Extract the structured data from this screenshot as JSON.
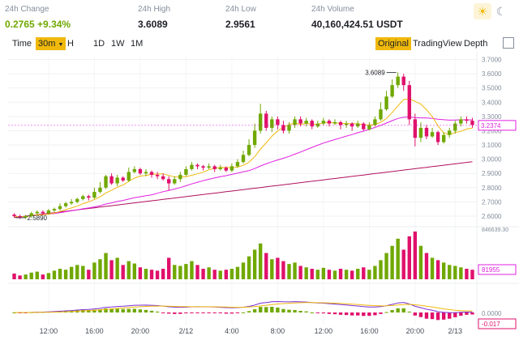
{
  "stats": {
    "change": {
      "label": "24h Change",
      "value": "0.2765",
      "percent": "+9.34%"
    },
    "high": {
      "label": "24h High",
      "value": "3.6089"
    },
    "low": {
      "label": "24h Low",
      "value": "2.9561"
    },
    "volume": {
      "label": "24h Volume",
      "value": "40,160,424.51 USDT"
    }
  },
  "theme": {
    "light_icon": "sun-icon",
    "dark_icon": "moon-icon"
  },
  "toolbar": {
    "time_label": "Time",
    "interval_selected": "30m",
    "intervals": [
      "H",
      "1D",
      "1W",
      "1M"
    ],
    "views": [
      "Original",
      "TradingView",
      "Depth"
    ],
    "active_view": "Original",
    "expand_icon": "expand-icon"
  },
  "colors": {
    "up": "#70a800",
    "down": "#e0106b",
    "ma_short": "#f0b90b",
    "ma_mid": "#e020e0",
    "ma_long": "#b0105e",
    "accent": "#f0b90b"
  },
  "chart_data": {
    "type": "candlestick",
    "price_axis_ticks": [
      "3.7000",
      "3.6000",
      "3.5000",
      "3.4000",
      "3.3000",
      "3.2000",
      "3.1000",
      "3.0000",
      "2.9000",
      "2.8000",
      "2.7000",
      "2.6000"
    ],
    "price_range": [
      2.56,
      3.72
    ],
    "last_price_label": "3.2374",
    "high_marker": "3.6089",
    "low_marker": "2.5890",
    "volume_max_label": "846639.30",
    "volume_ma_label": "81955",
    "macd_labels": [
      "0.0000",
      "-0.017"
    ],
    "x_ticks": [
      "12:00",
      "16:00",
      "20:00",
      "2/12",
      "4:00",
      "8:00",
      "12:00",
      "16:00",
      "20:00",
      "2/13"
    ],
    "candles": [
      [
        2.61,
        2.6,
        2.62,
        2.59
      ],
      [
        2.6,
        2.59,
        2.61,
        2.58
      ],
      [
        2.59,
        2.6,
        2.61,
        2.58
      ],
      [
        2.6,
        2.62,
        2.63,
        2.59
      ],
      [
        2.62,
        2.63,
        2.64,
        2.61
      ],
      [
        2.63,
        2.62,
        2.64,
        2.61
      ],
      [
        2.62,
        2.64,
        2.65,
        2.61
      ],
      [
        2.64,
        2.65,
        2.66,
        2.63
      ],
      [
        2.65,
        2.67,
        2.69,
        2.64
      ],
      [
        2.67,
        2.69,
        2.7,
        2.66
      ],
      [
        2.69,
        2.7,
        2.72,
        2.68
      ],
      [
        2.7,
        2.72,
        2.73,
        2.69
      ],
      [
        2.72,
        2.74,
        2.75,
        2.71
      ],
      [
        2.74,
        2.73,
        2.75,
        2.71
      ],
      [
        2.73,
        2.77,
        2.8,
        2.72
      ],
      [
        2.77,
        2.8,
        2.84,
        2.76
      ],
      [
        2.8,
        2.88,
        2.89,
        2.79
      ],
      [
        2.88,
        2.83,
        2.9,
        2.82
      ],
      [
        2.83,
        2.87,
        2.89,
        2.81
      ],
      [
        2.87,
        2.85,
        2.88,
        2.84
      ],
      [
        2.85,
        2.91,
        2.94,
        2.84
      ],
      [
        2.91,
        2.93,
        2.95,
        2.9
      ],
      [
        2.93,
        2.9,
        2.94,
        2.89
      ],
      [
        2.9,
        2.91,
        2.93,
        2.88
      ],
      [
        2.91,
        2.89,
        2.92,
        2.87
      ],
      [
        2.89,
        2.88,
        2.91,
        2.86
      ],
      [
        2.88,
        2.86,
        2.9,
        2.85
      ],
      [
        2.86,
        2.83,
        2.88,
        2.78
      ],
      [
        2.83,
        2.86,
        2.88,
        2.82
      ],
      [
        2.86,
        2.89,
        2.91,
        2.84
      ],
      [
        2.89,
        2.93,
        2.95,
        2.88
      ],
      [
        2.93,
        2.96,
        2.98,
        2.92
      ],
      [
        2.96,
        2.95,
        2.97,
        2.93
      ],
      [
        2.95,
        2.94,
        2.96,
        2.92
      ],
      [
        2.94,
        2.95,
        2.97,
        2.93
      ],
      [
        2.95,
        2.93,
        2.96,
        2.91
      ],
      [
        2.93,
        2.94,
        2.96,
        2.92
      ],
      [
        2.94,
        2.92,
        2.95,
        2.91
      ],
      [
        2.92,
        2.95,
        2.97,
        2.91
      ],
      [
        2.95,
        2.98,
        3.0,
        2.94
      ],
      [
        2.98,
        3.03,
        3.06,
        2.97
      ],
      [
        3.03,
        3.1,
        3.14,
        3.02
      ],
      [
        3.1,
        3.2,
        3.25,
        3.08
      ],
      [
        3.2,
        3.32,
        3.39,
        3.18
      ],
      [
        3.32,
        3.22,
        3.34,
        3.2
      ],
      [
        3.22,
        3.28,
        3.3,
        3.19
      ],
      [
        3.28,
        3.24,
        3.3,
        3.21
      ],
      [
        3.24,
        3.2,
        3.27,
        3.18
      ],
      [
        3.2,
        3.24,
        3.26,
        3.18
      ],
      [
        3.24,
        3.28,
        3.3,
        3.22
      ],
      [
        3.28,
        3.25,
        3.3,
        3.23
      ],
      [
        3.25,
        3.27,
        3.29,
        3.23
      ],
      [
        3.27,
        3.23,
        3.28,
        3.21
      ],
      [
        3.23,
        3.25,
        3.27,
        3.22
      ],
      [
        3.25,
        3.27,
        3.29,
        3.24
      ],
      [
        3.27,
        3.25,
        3.28,
        3.23
      ],
      [
        3.25,
        3.26,
        3.28,
        3.24
      ],
      [
        3.26,
        3.24,
        3.27,
        3.21
      ],
      [
        3.24,
        3.25,
        3.27,
        3.22
      ],
      [
        3.25,
        3.23,
        3.26,
        3.2
      ],
      [
        3.23,
        3.25,
        3.27,
        3.22
      ],
      [
        3.25,
        3.21,
        3.26,
        3.2
      ],
      [
        3.21,
        3.24,
        3.26,
        3.2
      ],
      [
        3.24,
        3.28,
        3.3,
        3.23
      ],
      [
        3.28,
        3.35,
        3.4,
        3.27
      ],
      [
        3.35,
        3.44,
        3.48,
        3.34
      ],
      [
        3.44,
        3.52,
        3.56,
        3.43
      ],
      [
        3.52,
        3.58,
        3.61,
        3.5
      ],
      [
        3.58,
        3.52,
        3.6,
        3.48
      ],
      [
        3.52,
        3.28,
        3.55,
        3.24
      ],
      [
        3.28,
        3.15,
        3.32,
        3.09
      ],
      [
        3.15,
        3.22,
        3.26,
        3.12
      ],
      [
        3.22,
        3.16,
        3.24,
        3.14
      ],
      [
        3.16,
        3.19,
        3.22,
        3.15
      ],
      [
        3.19,
        3.12,
        3.2,
        3.1
      ],
      [
        3.12,
        3.17,
        3.19,
        3.11
      ],
      [
        3.17,
        3.2,
        3.22,
        3.15
      ],
      [
        3.2,
        3.25,
        3.27,
        3.18
      ],
      [
        3.25,
        3.28,
        3.3,
        3.23
      ],
      [
        3.28,
        3.27,
        3.3,
        3.25
      ],
      [
        3.27,
        3.24,
        3.29,
        3.22
      ]
    ],
    "volumes": [
      0.12,
      0.08,
      0.1,
      0.14,
      0.16,
      0.1,
      0.13,
      0.18,
      0.22,
      0.2,
      0.26,
      0.3,
      0.28,
      0.2,
      0.35,
      0.42,
      0.55,
      0.4,
      0.45,
      0.3,
      0.38,
      0.33,
      0.25,
      0.22,
      0.2,
      0.18,
      0.22,
      0.45,
      0.3,
      0.28,
      0.32,
      0.38,
      0.3,
      0.22,
      0.25,
      0.2,
      0.18,
      0.2,
      0.22,
      0.26,
      0.35,
      0.48,
      0.62,
      0.75,
      0.55,
      0.42,
      0.45,
      0.38,
      0.32,
      0.35,
      0.28,
      0.25,
      0.22,
      0.2,
      0.24,
      0.2,
      0.18,
      0.22,
      0.2,
      0.18,
      0.22,
      0.25,
      0.2,
      0.28,
      0.4,
      0.55,
      0.7,
      0.85,
      0.62,
      0.9,
      1.0,
      0.7,
      0.55,
      0.45,
      0.4,
      0.35,
      0.3,
      0.28,
      0.25,
      0.22,
      0.2
    ]
  }
}
